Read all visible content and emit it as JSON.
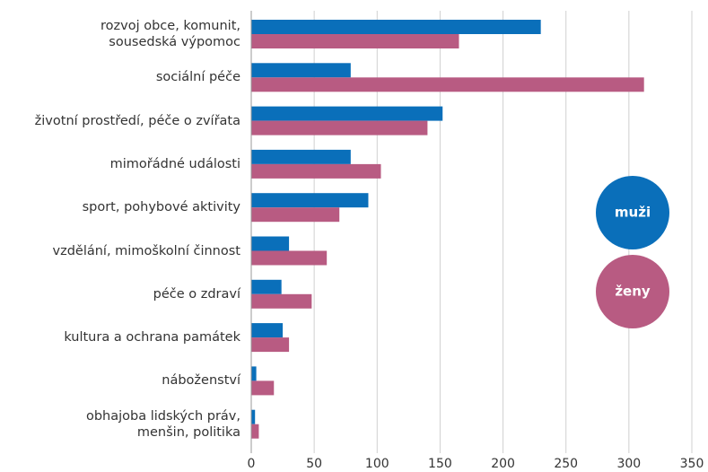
{
  "chart_data": {
    "type": "bar",
    "orientation": "horizontal",
    "categories": [
      "rozvoj obce, komunit,\nsousedská výpomoc",
      "sociální péče",
      "životní prostředí, péče o zvířata",
      "mimořádné události",
      "sport, pohybové aktivity",
      "vzdělání, mimoškolní činnost",
      "péče o zdraví",
      "kultura a ochrana památek",
      "náboženství",
      "obhajoba lidských práv,\nmenšin, politika"
    ],
    "series": [
      {
        "name": "muži",
        "color": "#0a6fba",
        "values": [
          230,
          79,
          152,
          79,
          93,
          30,
          24,
          25,
          4,
          3
        ]
      },
      {
        "name": "ženy",
        "color": "#b85b82",
        "values": [
          165,
          312,
          140,
          103,
          70,
          60,
          48,
          30,
          18,
          6
        ]
      }
    ],
    "xlim": [
      0,
      350
    ],
    "xticks": [
      0,
      50,
      100,
      150,
      200,
      250,
      300,
      350
    ],
    "grid": true,
    "legend": "right"
  }
}
